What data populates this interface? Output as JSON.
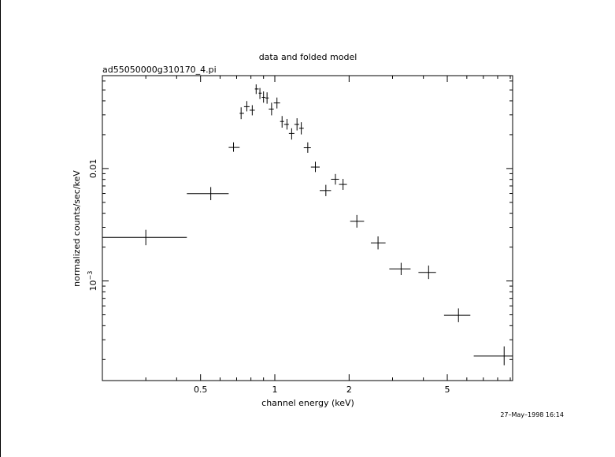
{
  "chart_data": {
    "type": "scatter",
    "title": "data and folded model",
    "subtitle": "ad55050000g310170_4.pi",
    "xlabel": "channel energy (keV)",
    "ylabel": "normalized counts/sec/keV",
    "xscale": "log",
    "yscale": "log",
    "xlim": [
      0.2,
      9.2
    ],
    "ylim": [
      0.00013,
      0.067
    ],
    "x_ticks": [
      {
        "value": 0.5,
        "label": "0.5"
      },
      {
        "value": 1,
        "label": "1"
      },
      {
        "value": 2,
        "label": "2"
      },
      {
        "value": 5,
        "label": "5"
      }
    ],
    "y_ticks": [
      {
        "value": 0.01,
        "label": "0.01"
      },
      {
        "value": 0.001,
        "label": "10",
        "exponent": "−3"
      }
    ],
    "grid": false,
    "points": [
      {
        "x": 0.3,
        "xlo": 0.2,
        "xhi": 0.44,
        "y": 0.00244,
        "ylo": 0.00208,
        "yhi": 0.00285
      },
      {
        "x": 0.55,
        "xlo": 0.44,
        "xhi": 0.65,
        "y": 0.00598,
        "ylo": 0.00523,
        "yhi": 0.00684
      },
      {
        "x": 0.68,
        "xlo": 0.65,
        "xhi": 0.72,
        "y": 0.0154,
        "ylo": 0.0141,
        "yhi": 0.0171
      },
      {
        "x": 0.73,
        "xlo": 0.72,
        "xhi": 0.75,
        "y": 0.031,
        "ylo": 0.0275,
        "yhi": 0.035
      },
      {
        "x": 0.77,
        "xlo": 0.75,
        "xhi": 0.79,
        "y": 0.0355,
        "ylo": 0.0322,
        "yhi": 0.0398
      },
      {
        "x": 0.81,
        "xlo": 0.79,
        "xhi": 0.83,
        "y": 0.033,
        "ylo": 0.0297,
        "yhi": 0.0366
      },
      {
        "x": 0.84,
        "xlo": 0.83,
        "xhi": 0.86,
        "y": 0.051,
        "ylo": 0.046,
        "yhi": 0.056
      },
      {
        "x": 0.87,
        "xlo": 0.86,
        "xhi": 0.885,
        "y": 0.0468,
        "ylo": 0.0415,
        "yhi": 0.052
      },
      {
        "x": 0.9,
        "xlo": 0.885,
        "xhi": 0.915,
        "y": 0.043,
        "ylo": 0.0385,
        "yhi": 0.0485
      },
      {
        "x": 0.93,
        "xlo": 0.915,
        "xhi": 0.945,
        "y": 0.0424,
        "ylo": 0.0377,
        "yhi": 0.0476
      },
      {
        "x": 0.97,
        "xlo": 0.945,
        "xhi": 0.99,
        "y": 0.0338,
        "ylo": 0.0297,
        "yhi": 0.0385
      },
      {
        "x": 1.02,
        "xlo": 0.99,
        "xhi": 1.05,
        "y": 0.0383,
        "ylo": 0.0342,
        "yhi": 0.0428
      },
      {
        "x": 1.07,
        "xlo": 1.05,
        "xhi": 1.09,
        "y": 0.0262,
        "ylo": 0.0231,
        "yhi": 0.0293
      },
      {
        "x": 1.12,
        "xlo": 1.09,
        "xhi": 1.14,
        "y": 0.0247,
        "ylo": 0.0222,
        "yhi": 0.0276
      },
      {
        "x": 1.17,
        "xlo": 1.14,
        "xhi": 1.2,
        "y": 0.0205,
        "ylo": 0.0181,
        "yhi": 0.0228
      },
      {
        "x": 1.23,
        "xlo": 1.2,
        "xhi": 1.255,
        "y": 0.0247,
        "ylo": 0.0218,
        "yhi": 0.028
      },
      {
        "x": 1.28,
        "xlo": 1.255,
        "xhi": 1.31,
        "y": 0.0228,
        "ylo": 0.0201,
        "yhi": 0.0258
      },
      {
        "x": 1.36,
        "xlo": 1.31,
        "xhi": 1.4,
        "y": 0.0153,
        "ylo": 0.0138,
        "yhi": 0.0171
      },
      {
        "x": 1.46,
        "xlo": 1.4,
        "xhi": 1.52,
        "y": 0.0103,
        "ylo": 0.0093,
        "yhi": 0.0115
      },
      {
        "x": 1.61,
        "xlo": 1.52,
        "xhi": 1.69,
        "y": 0.00637,
        "ylo": 0.00568,
        "yhi": 0.00716
      },
      {
        "x": 1.76,
        "xlo": 1.69,
        "xhi": 1.82,
        "y": 0.00803,
        "ylo": 0.00719,
        "yhi": 0.00894
      },
      {
        "x": 1.89,
        "xlo": 1.82,
        "xhi": 1.96,
        "y": 0.00722,
        "ylo": 0.00646,
        "yhi": 0.00809
      },
      {
        "x": 2.15,
        "xlo": 2.02,
        "xhi": 2.3,
        "y": 0.00339,
        "ylo": 0.00298,
        "yhi": 0.00386
      },
      {
        "x": 2.62,
        "xlo": 2.45,
        "xhi": 2.81,
        "y": 0.00218,
        "ylo": 0.00191,
        "yhi": 0.00249
      },
      {
        "x": 3.25,
        "xlo": 2.91,
        "xhi": 3.55,
        "y": 0.00128,
        "ylo": 0.00113,
        "yhi": 0.00145
      },
      {
        "x": 4.2,
        "xlo": 3.82,
        "xhi": 4.5,
        "y": 0.00119,
        "ylo": 0.00104,
        "yhi": 0.00137
      },
      {
        "x": 5.55,
        "xlo": 4.85,
        "xhi": 6.2,
        "y": 0.000495,
        "ylo": 0.00043,
        "yhi": 0.00057
      },
      {
        "x": 8.5,
        "xlo": 6.4,
        "xhi": 9.2,
        "y": 0.000215,
        "ylo": 0.000178,
        "yhi": 0.000262
      }
    ]
  },
  "footer": {
    "timestamp": "27–May–1998 16:14"
  }
}
